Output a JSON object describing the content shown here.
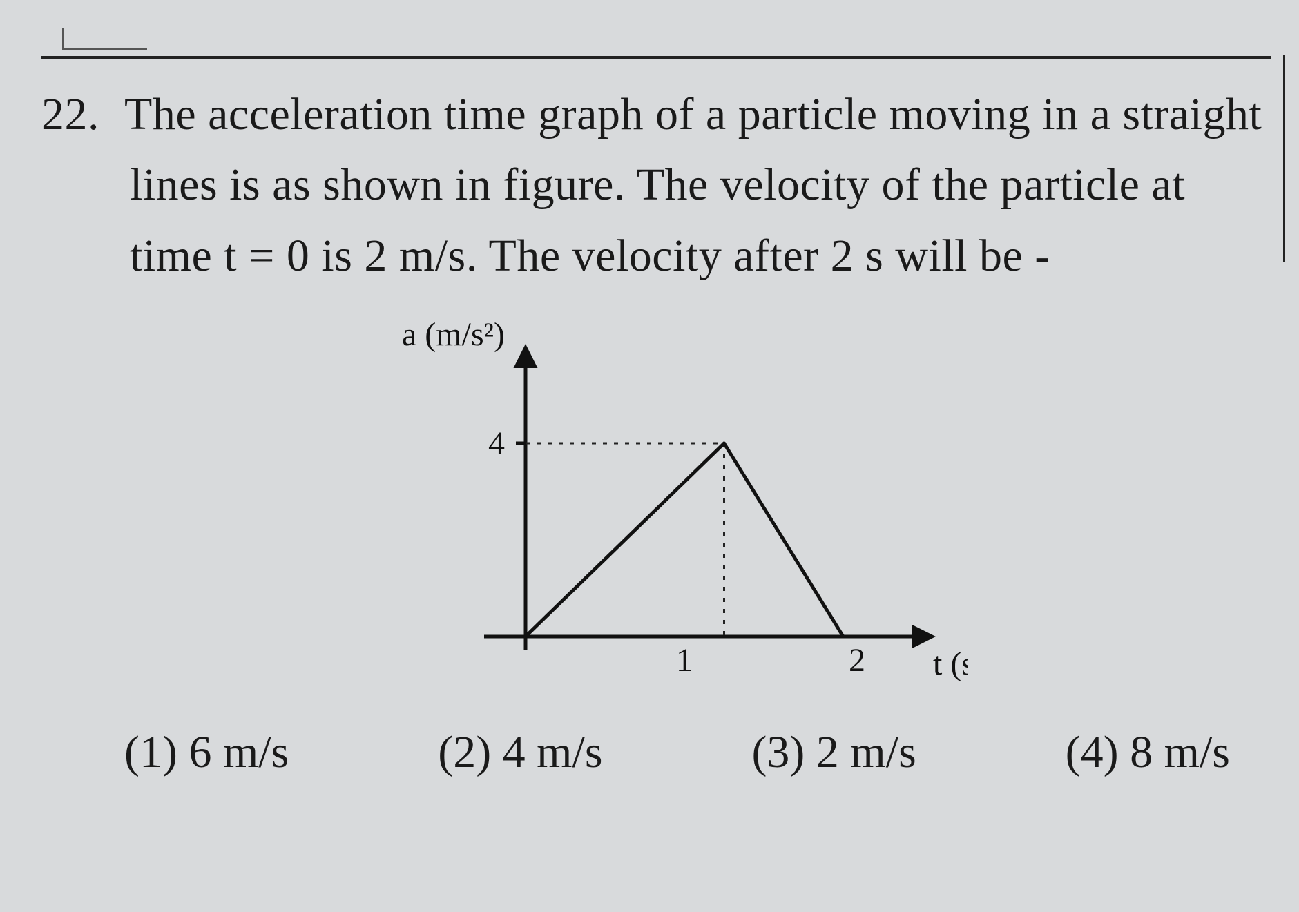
{
  "question": {
    "number": "22.",
    "line1": "The acceleration time graph of a particle moving in a straight",
    "line2": "lines is as shown in figure. The velocity of the particle at",
    "line3_a": "time t = 0 is 2 m/s. The velocity after 2 s will be -"
  },
  "chart": {
    "type": "line",
    "y_label": "a (m/s²)",
    "x_label": "t (s)",
    "y_tick_value": "4",
    "x_tick_1": "1",
    "x_tick_2": "2",
    "peak_x": 1.25,
    "peak_y": 4,
    "xlim": [
      0,
      2
    ],
    "ylim": [
      0,
      5
    ],
    "axis_color": "#111111",
    "line_color": "#111111",
    "dash_color": "#222222",
    "background": "#d8dadc",
    "axis_width": 5,
    "line_width": 5,
    "dash_pattern": "6,10",
    "tick_fontsize": 48,
    "label_fontsize": 48
  },
  "options": {
    "o1": "(1) 6 m/s",
    "o2": "(2)  4 m/s",
    "o3": "(3) 2 m/s",
    "o4": "(4) 8 m/s"
  }
}
